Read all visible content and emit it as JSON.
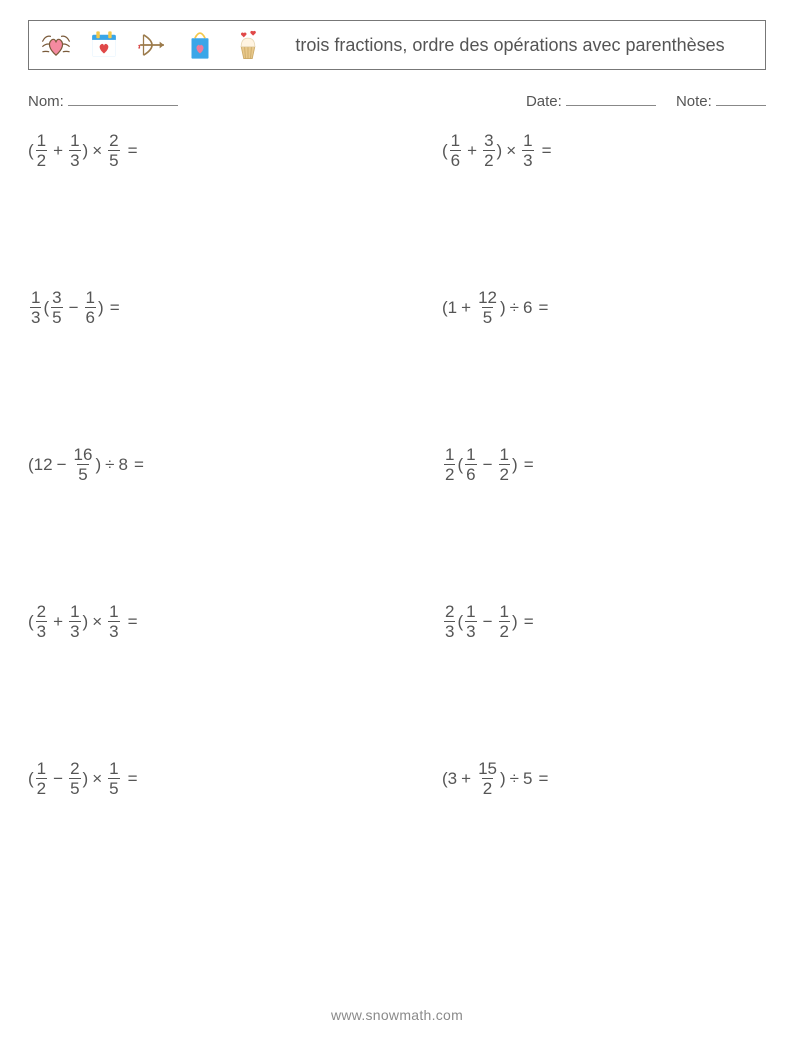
{
  "colors": {
    "text": "#555555",
    "border": "#777777",
    "background": "#ffffff"
  },
  "header": {
    "title": "trois fractions, ordre des opérations avec parenthèses"
  },
  "meta": {
    "name_label": "Nom:",
    "date_label": "Date:",
    "note_label": "Note:"
  },
  "icons": {
    "heart_wings": {
      "name": "heart-wings-icon",
      "pink": "#f6a9b7",
      "outline": "#7a5a3a"
    },
    "calendar_heart": {
      "name": "calendar-heart-icon",
      "blue": "#3aa6e8",
      "white": "#ffffff",
      "red": "#e04848",
      "yellow": "#f4c84a"
    },
    "bow_arrow": {
      "name": "bow-arrow-icon",
      "brown": "#9b7a4a",
      "red": "#d94a4a"
    },
    "gift_bag": {
      "name": "gift-bag-icon",
      "blue": "#3aa6e8",
      "pink": "#f07a9a",
      "yellow": "#f4c84a"
    },
    "cupcake": {
      "name": "cupcake-hearts-icon",
      "cup": "#e9c98c",
      "cream": "#fff4e2",
      "hearts": "#e04848"
    }
  },
  "problems": [
    {
      "lparen": "(",
      "a": {
        "n": "1",
        "d": "2"
      },
      "op1": "+",
      "b": {
        "n": "1",
        "d": "3"
      },
      "rparen": ")",
      "op2": "×",
      "c": {
        "n": "2",
        "d": "5"
      },
      "tail": " ="
    },
    {
      "lparen": "(",
      "a": {
        "n": "1",
        "d": "6"
      },
      "op1": "+",
      "b": {
        "n": "3",
        "d": "2"
      },
      "rparen": ")",
      "op2": "×",
      "c": {
        "n": "1",
        "d": "3"
      },
      "tail": " ="
    },
    {
      "pre": {
        "n": "1",
        "d": "3"
      },
      "lparen": "(",
      "a": {
        "n": "3",
        "d": "5"
      },
      "op1": "−",
      "b": {
        "n": "1",
        "d": "6"
      },
      "rparen": ")",
      "tail": " ="
    },
    {
      "lparen": "(",
      "aText": "1",
      "op1": "+",
      "b": {
        "n": "12",
        "d": "5"
      },
      "rparen": ")",
      "op2": "÷",
      "cText": "6",
      "tail": " ="
    },
    {
      "lparen": "(",
      "aText": "12",
      "op1": "−",
      "b": {
        "n": "16",
        "d": "5"
      },
      "rparen": ")",
      "op2": "÷",
      "cText": "8",
      "tail": " ="
    },
    {
      "pre": {
        "n": "1",
        "d": "2"
      },
      "lparen": "(",
      "a": {
        "n": "1",
        "d": "6"
      },
      "op1": "−",
      "b": {
        "n": "1",
        "d": "2"
      },
      "rparen": ")",
      "tail": " ="
    },
    {
      "lparen": "(",
      "a": {
        "n": "2",
        "d": "3"
      },
      "op1": "+",
      "b": {
        "n": "1",
        "d": "3"
      },
      "rparen": ")",
      "op2": "×",
      "c": {
        "n": "1",
        "d": "3"
      },
      "tail": " ="
    },
    {
      "pre": {
        "n": "2",
        "d": "3"
      },
      "lparen": "(",
      "a": {
        "n": "1",
        "d": "3"
      },
      "op1": "−",
      "b": {
        "n": "1",
        "d": "2"
      },
      "rparen": ")",
      "tail": " ="
    },
    {
      "lparen": "(",
      "a": {
        "n": "1",
        "d": "2"
      },
      "op1": "−",
      "b": {
        "n": "2",
        "d": "5"
      },
      "rparen": ")",
      "op2": "×",
      "c": {
        "n": "1",
        "d": "5"
      },
      "tail": " ="
    },
    {
      "lparen": "(",
      "aText": "3",
      "op1": "+",
      "b": {
        "n": "15",
        "d": "2"
      },
      "rparen": ")",
      "op2": "÷",
      "cText": "5",
      "tail": " ="
    }
  ],
  "footer": {
    "url": "www.snowmath.com"
  }
}
